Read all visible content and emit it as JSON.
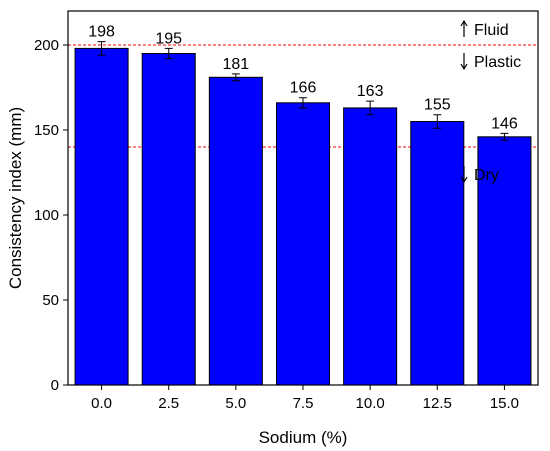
{
  "chart_data": {
    "type": "bar",
    "title": "",
    "xlabel": "Sodium (%)",
    "ylabel": "Consistency index (mm)",
    "categories": [
      "0.0",
      "2.5",
      "5.0",
      "7.5",
      "10.0",
      "12.5",
      "15.0"
    ],
    "values": [
      198,
      195,
      181,
      166,
      163,
      155,
      146
    ],
    "data_labels": [
      "198",
      "195",
      "181",
      "166",
      "163",
      "155",
      "146"
    ],
    "error": [
      4,
      3,
      2,
      3,
      4,
      4,
      2
    ],
    "ylim": [
      0,
      220
    ],
    "yticks": [
      0,
      50,
      100,
      150,
      200
    ],
    "ytick_labels": [
      "0",
      "50",
      "100",
      "150",
      "200"
    ],
    "bar_color": "#0000ff",
    "bar_edge_color": "#000000",
    "grid": false,
    "reference_lines": [
      {
        "value": 200,
        "color": "#ff0000",
        "style": "dashed"
      },
      {
        "value": 140,
        "color": "#ff0000",
        "style": "dashed"
      }
    ],
    "annotations": [
      {
        "text": "Fluid",
        "arrow": "up",
        "at_value": 200
      },
      {
        "text": "Plastic",
        "arrow": "down",
        "at_value": 200
      },
      {
        "text": "Dry",
        "arrow": "down",
        "at_value": 140
      }
    ]
  }
}
